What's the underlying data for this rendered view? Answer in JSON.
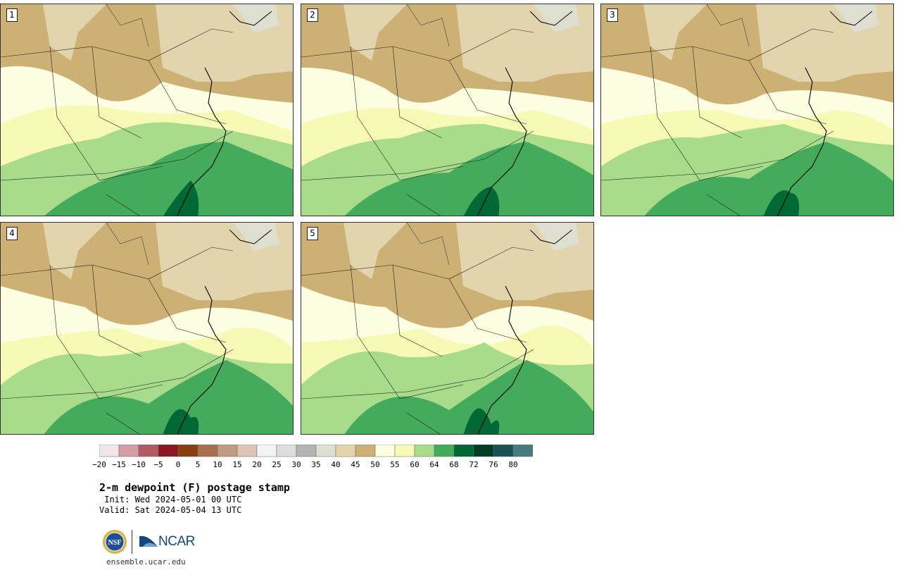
{
  "title": "2-m dewpoint (F) postage stamp",
  "init": " Init: Wed 2024-05-01 00 UTC",
  "valid": "Valid: Sat 2024-05-04 13 UTC",
  "site": "ensemble.ucar.edu",
  "logos": {
    "nsf": "NSF",
    "ncar": "NCAR"
  },
  "panels": [
    {
      "label": "1"
    },
    {
      "label": "2"
    },
    {
      "label": "3"
    },
    {
      "label": "4"
    },
    {
      "label": "5"
    }
  ],
  "colorbar": {
    "colors": [
      "#f3e6e6",
      "#d69da4",
      "#b25a63",
      "#8e1620",
      "#8a3f12",
      "#a8704e",
      "#c29b83",
      "#dfc3b4",
      "#f4f4f4",
      "#dddddd",
      "#b4b4b4",
      "#dedfd0",
      "#e2d5ae",
      "#ccb074",
      "#fefee2",
      "#f6fab4",
      "#a8dc8a",
      "#44ab5c",
      "#006835",
      "#003d21",
      "#195154",
      "#467c80"
    ],
    "ticks": [
      "−20",
      "−15",
      "−10",
      "−5",
      "0",
      "5",
      "10",
      "15",
      "20",
      "25",
      "30",
      "35",
      "40",
      "45",
      "50",
      "55",
      "60",
      "64",
      "68",
      "72",
      "76",
      "80"
    ]
  }
}
